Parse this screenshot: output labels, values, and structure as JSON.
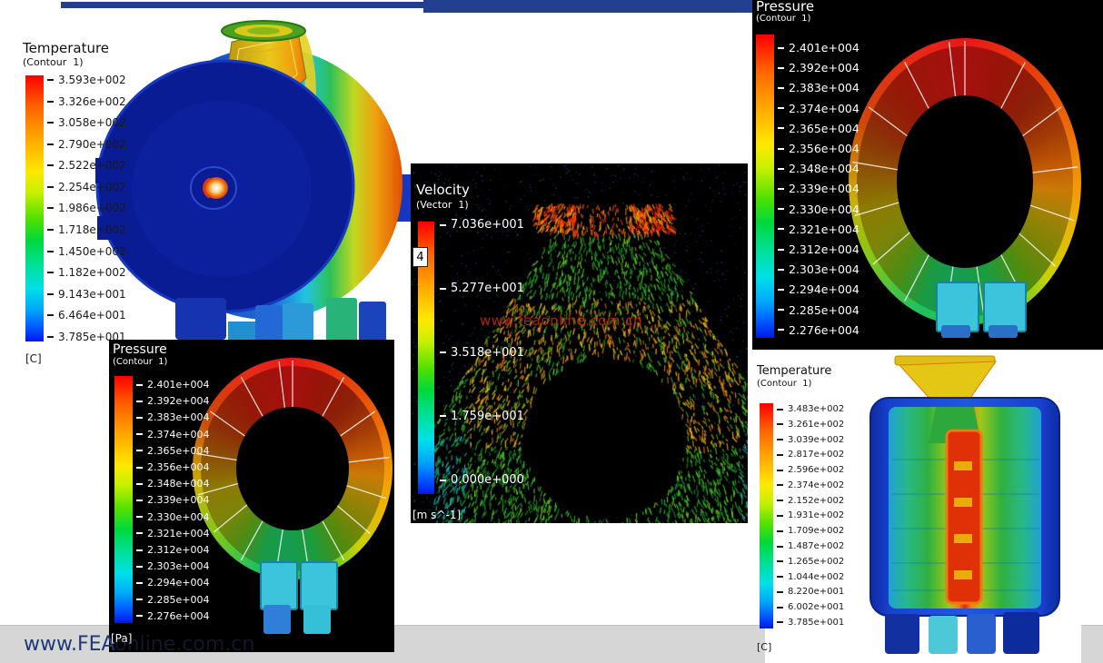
{
  "colors": {
    "top_bar": "#233f8f",
    "footer_strip": "#d6d6d6",
    "watermark_blue": "#1d3a75",
    "watermark_red": "#cf2410",
    "panel_background": "#000000"
  },
  "footer": {
    "watermark_bold": "www.FEA",
    "watermark_faint": "online.com.cn"
  },
  "panels": {
    "temperature_left": {
      "title": "Temperature",
      "subtitle": "(Contour  1)",
      "unit": "[C]",
      "legend_values": [
        "3.593e+002",
        "3.326e+002",
        "3.058e+002",
        "2.790e+002",
        "2.522e+002",
        "2.254e+002",
        "1.986e+002",
        "1.718e+002",
        "1.450e+002",
        "1.182e+002",
        "9.143e+001",
        "6.464e+001",
        "3.785e+001"
      ]
    },
    "velocity_center": {
      "title": "Velocity",
      "subtitle": "(Vector  1)",
      "unit": "[m s^-1]",
      "probe_tag": "4",
      "watermark": "www.feaonline.com.cn",
      "legend_values": [
        "7.036e+001",
        "5.277e+001",
        "3.518e+001",
        "1.759e+001",
        "0.000e+000"
      ]
    },
    "pressure_top_right": {
      "title": "Pressure",
      "subtitle": "(Contour  1)",
      "legend_values": [
        "2.401e+004",
        "2.392e+004",
        "2.383e+004",
        "2.374e+004",
        "2.365e+004",
        "2.356e+004",
        "2.348e+004",
        "2.339e+004",
        "2.330e+004",
        "2.321e+004",
        "2.312e+004",
        "2.303e+004",
        "2.294e+004",
        "2.285e+004",
        "2.276e+004"
      ]
    },
    "pressure_bottom_left": {
      "title": "Pressure",
      "subtitle": "(Contour  1)",
      "unit": "[Pa]",
      "legend_values": [
        "2.401e+004",
        "2.392e+004",
        "2.383e+004",
        "2.374e+004",
        "2.365e+004",
        "2.356e+004",
        "2.348e+004",
        "2.339e+004",
        "2.330e+004",
        "2.321e+004",
        "2.312e+004",
        "2.303e+004",
        "2.294e+004",
        "2.285e+004",
        "2.276e+004"
      ]
    },
    "temperature_bottom_right": {
      "title": "Temperature",
      "subtitle": "(Contour  1)",
      "unit": "[C]",
      "legend_values": [
        "3.483e+002",
        "3.261e+002",
        "3.039e+002",
        "2.817e+002",
        "2.596e+002",
        "2.374e+002",
        "2.152e+002",
        "1.931e+002",
        "1.709e+002",
        "1.487e+002",
        "1.265e+002",
        "1.044e+002",
        "8.220e+001",
        "6.002e+001",
        "3.785e+001"
      ]
    }
  },
  "chart_data": [
    {
      "type": "heatmap",
      "title": "Temperature (Contour 1)",
      "plot_kind": "3D temperature contour of machine casing",
      "unit": "C",
      "scale_max": 359.3,
      "scale_min": 37.85,
      "ticks": [
        359.3,
        332.6,
        305.8,
        279.0,
        252.2,
        225.4,
        198.6,
        171.8,
        145.0,
        118.2,
        91.43,
        64.64,
        37.85
      ],
      "legend_position": "left"
    },
    {
      "type": "heatmap",
      "title": "Velocity (Vector 1)",
      "plot_kind": "2D velocity vector field around rotor",
      "unit": "m s^-1",
      "scale_max": 70.36,
      "scale_min": 0.0,
      "ticks": [
        70.36,
        52.77,
        35.18,
        17.59,
        0.0
      ],
      "probe_value": 4,
      "legend_position": "left"
    },
    {
      "type": "heatmap",
      "title": "Pressure (Contour 1)",
      "plot_kind": "pressure contour on annular ring (top right)",
      "unit": "Pa",
      "scale_max": 24010,
      "scale_min": 22760,
      "ticks": [
        24010,
        23920,
        23830,
        23740,
        23650,
        23560,
        23480,
        23390,
        23300,
        23210,
        23120,
        23030,
        22940,
        22850,
        22760
      ],
      "legend_position": "left"
    },
    {
      "type": "heatmap",
      "title": "Pressure (Contour 1)",
      "plot_kind": "pressure contour on annular ring (bottom left)",
      "unit": "Pa",
      "scale_max": 24010,
      "scale_min": 22760,
      "ticks": [
        24010,
        23920,
        23830,
        23740,
        23650,
        23560,
        23480,
        23390,
        23300,
        23210,
        23120,
        23030,
        22940,
        22850,
        22760
      ],
      "legend_position": "left"
    },
    {
      "type": "heatmap",
      "title": "Temperature (Contour 1)",
      "plot_kind": "cut-away temperature contour of machine",
      "unit": "C",
      "scale_max": 348.3,
      "scale_min": 37.85,
      "ticks": [
        348.3,
        326.1,
        303.9,
        281.7,
        259.6,
        237.4,
        215.2,
        193.1,
        170.9,
        148.7,
        126.5,
        104.4,
        82.2,
        60.02,
        37.85
      ],
      "legend_position": "left"
    }
  ]
}
